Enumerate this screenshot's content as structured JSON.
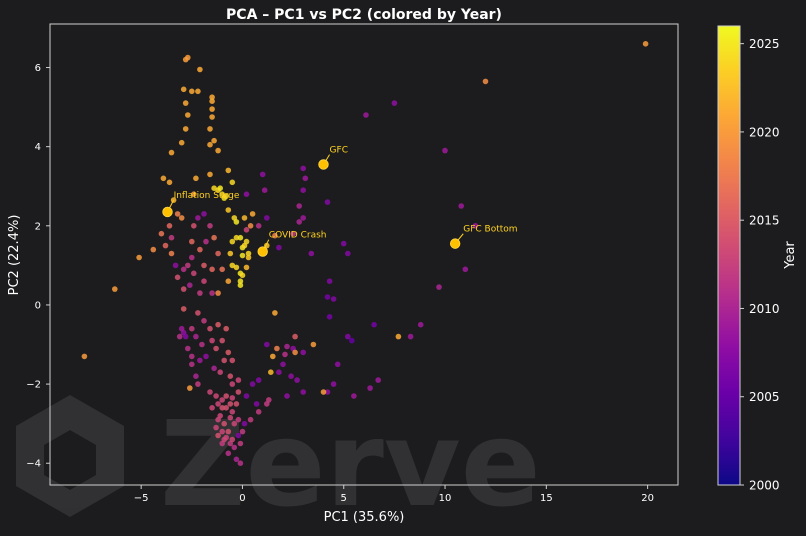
{
  "chart_data": {
    "type": "scatter",
    "title": "PCA – PC1 vs PC2 (colored by Year)",
    "xlabel": "PC1 (35.6%)",
    "ylabel": "PC2 (22.4%)",
    "xlim": [
      -9.5,
      21.5
    ],
    "ylim": [
      -4.55,
      7.1
    ],
    "xticks": [
      -5,
      0,
      5,
      10,
      15,
      20
    ],
    "yticks": [
      -4,
      -2,
      0,
      2,
      4,
      6
    ],
    "grid": false,
    "colorbar": {
      "label": "Year",
      "range": [
        2000,
        2026
      ],
      "ticks": [
        2000,
        2005,
        2010,
        2015,
        2020,
        2025
      ],
      "colormap": "plasma"
    },
    "annotations": [
      {
        "label": "GFC",
        "x": 4.0,
        "y": 3.55,
        "text_x": 4.3,
        "text_y": 3.85
      },
      {
        "label": "Inflation Surge",
        "x": -3.7,
        "y": 2.35,
        "text_x": -3.4,
        "text_y": 2.7
      },
      {
        "label": "COVID Crash",
        "x": 1.0,
        "y": 1.35,
        "text_x": 1.3,
        "text_y": 1.7
      },
      {
        "label": "GFC Bottom",
        "x": 10.5,
        "y": 1.55,
        "text_x": 10.9,
        "text_y": 1.85
      }
    ],
    "points": [
      [
        19.9,
        6.6,
        2020
      ],
      [
        12.0,
        5.65,
        2019
      ],
      [
        7.5,
        5.1,
        2008
      ],
      [
        6.1,
        4.8,
        2009
      ],
      [
        10.0,
        3.9,
        2009
      ],
      [
        10.8,
        2.5,
        2009
      ],
      [
        11.5,
        2.0,
        2009
      ],
      [
        11.0,
        0.9,
        2009
      ],
      [
        9.7,
        0.45,
        2010
      ],
      [
        8.8,
        -0.5,
        2009
      ],
      [
        8.3,
        -0.8,
        2009
      ],
      [
        7.7,
        -0.8,
        2021
      ],
      [
        6.7,
        -1.9,
        2009
      ],
      [
        6.3,
        -2.1,
        2009
      ],
      [
        5.5,
        -2.3,
        2009
      ],
      [
        4.7,
        -1.5,
        2008
      ],
      [
        4.5,
        -2.0,
        2008
      ],
      [
        4.2,
        -2.2,
        2008
      ],
      [
        4.0,
        -2.2,
        2020
      ],
      [
        3.5,
        -1.0,
        2020
      ],
      [
        3.0,
        -2.2,
        2008
      ],
      [
        3.0,
        -1.2,
        2008
      ],
      [
        2.7,
        -1.9,
        2008
      ],
      [
        2.4,
        -1.8,
        2008
      ],
      [
        2.2,
        -2.3,
        2008
      ],
      [
        2.0,
        -1.5,
        2008
      ],
      [
        2.5,
        -1.1,
        2008
      ],
      [
        2.6,
        -1.2,
        2019
      ],
      [
        1.8,
        -1.7,
        2008
      ],
      [
        1.7,
        -1.1,
        2018
      ],
      [
        1.5,
        -1.3,
        2021
      ],
      [
        1.4,
        -1.7,
        2022
      ],
      [
        1.2,
        -1.0,
        2007
      ],
      [
        0.8,
        -1.9,
        2007
      ],
      [
        0.5,
        -2.0,
        2007
      ],
      [
        0.2,
        -2.3,
        2007
      ],
      [
        0.7,
        -2.5,
        2007
      ],
      [
        0.1,
        -3.0,
        2007
      ],
      [
        -0.2,
        -3.3,
        2007
      ],
      [
        1.3,
        -2.4,
        2012
      ],
      [
        1.2,
        -2.5,
        2012
      ],
      [
        0.8,
        -2.7,
        2012
      ],
      [
        0.4,
        -2.9,
        2012
      ],
      [
        0.0,
        -3.2,
        2012
      ],
      [
        -1.2,
        -2.5,
        2013
      ],
      [
        -1.0,
        -2.6,
        2014
      ],
      [
        -1.1,
        -2.8,
        2013
      ],
      [
        -0.9,
        -3.0,
        2014
      ],
      [
        -1.3,
        -3.1,
        2013
      ],
      [
        -0.7,
        -3.2,
        2014
      ],
      [
        -0.8,
        -3.35,
        2013
      ],
      [
        -1.0,
        -3.5,
        2012
      ],
      [
        -0.6,
        -3.5,
        2012
      ],
      [
        -0.4,
        -3.6,
        2011
      ],
      [
        -0.3,
        -3.9,
        2010
      ],
      [
        -0.1,
        -3.5,
        2012
      ],
      [
        -0.4,
        -3.0,
        2013
      ],
      [
        -0.5,
        -2.7,
        2013
      ],
      [
        -0.6,
        -2.5,
        2014
      ],
      [
        -0.3,
        -2.5,
        2014
      ],
      [
        -0.8,
        -2.3,
        2014
      ],
      [
        -1.3,
        -2.3,
        2013
      ],
      [
        -1.5,
        -2.6,
        2013
      ],
      [
        -1.2,
        -3.3,
        2014
      ],
      [
        -0.9,
        -3.4,
        2013
      ],
      [
        -0.5,
        -3.4,
        2013
      ],
      [
        -0.2,
        -2.9,
        2012
      ],
      [
        -0.2,
        -2.2,
        2014
      ],
      [
        -0.1,
        -4.0,
        2011
      ],
      [
        -0.7,
        -3.75,
        2011
      ],
      [
        -1.6,
        -2.2,
        2013
      ],
      [
        -1.0,
        -2.4,
        2013
      ],
      [
        -0.5,
        -2.35,
        2013
      ],
      [
        -1.2,
        -2.9,
        2013
      ],
      [
        -0.6,
        -2.85,
        2013
      ],
      [
        -0.8,
        -2.6,
        2014
      ],
      [
        -1.0,
        -3.2,
        2013
      ],
      [
        -0.5,
        -2.0,
        2013
      ],
      [
        -0.2,
        -1.9,
        2013
      ],
      [
        -0.6,
        -1.8,
        2014
      ],
      [
        -1.1,
        -1.7,
        2013
      ],
      [
        -0.9,
        -1.4,
        2014
      ],
      [
        -0.7,
        -1.2,
        2015
      ],
      [
        -1.3,
        -1.1,
        2014
      ],
      [
        -1.0,
        -0.9,
        2014
      ],
      [
        -1.5,
        -0.9,
        2013
      ],
      [
        -0.8,
        -0.6,
        2015
      ],
      [
        -1.2,
        -0.5,
        2015
      ],
      [
        -1.6,
        -0.6,
        2014
      ],
      [
        -0.5,
        -1.4,
        2014
      ],
      [
        -1.8,
        -1.3,
        2008
      ],
      [
        -2.0,
        -1.0,
        2011
      ],
      [
        -2.3,
        -0.8,
        2010
      ],
      [
        -1.9,
        -0.4,
        2012
      ],
      [
        -2.2,
        -0.2,
        2014
      ],
      [
        -2.9,
        -0.1,
        2015
      ],
      [
        -2.9,
        0.4,
        2014
      ],
      [
        -2.5,
        -0.6,
        2012
      ],
      [
        -2.5,
        -1.3,
        2011
      ],
      [
        -2.1,
        -1.4,
        2009
      ],
      [
        -1.4,
        -1.6,
        2010
      ],
      [
        -2.2,
        -2.0,
        2012
      ],
      [
        -2.7,
        -1.1,
        2011
      ],
      [
        -2.9,
        -0.7,
        2008
      ],
      [
        -3.0,
        -0.6,
        2009
      ],
      [
        -2.8,
        -0.8,
        2007
      ],
      [
        -2.6,
        -2.1,
        2020
      ],
      [
        -2.5,
        -1.5,
        2011
      ],
      [
        -2.3,
        -1.8,
        2010
      ],
      [
        -3.1,
        -0.8,
        2011
      ],
      [
        -3.2,
        0.7,
        2014
      ],
      [
        -3.3,
        1.0,
        2008
      ],
      [
        -2.9,
        0.9,
        2011
      ],
      [
        -2.7,
        1.0,
        2012
      ],
      [
        -2.5,
        1.2,
        2011
      ],
      [
        -2.4,
        0.8,
        2013
      ],
      [
        -2.6,
        0.5,
        2010
      ],
      [
        -2.1,
        0.3,
        2012
      ],
      [
        -1.9,
        0.6,
        2013
      ],
      [
        -1.5,
        0.9,
        2016
      ],
      [
        -1.2,
        1.3,
        2016
      ],
      [
        -1.0,
        0.9,
        2017
      ],
      [
        -1.2,
        0.3,
        2019
      ],
      [
        -1.5,
        0.3,
        2011
      ],
      [
        -1.4,
        1.7,
        2017
      ],
      [
        -1.8,
        1.6,
        2011
      ],
      [
        -1.6,
        2.0,
        2012
      ],
      [
        -2.2,
        2.2,
        2009
      ],
      [
        -1.9,
        2.3,
        2008
      ],
      [
        -2.1,
        1.4,
        2016
      ],
      [
        -1.9,
        1.0,
        2015
      ],
      [
        -3.5,
        1.7,
        2012
      ],
      [
        -3.8,
        1.5,
        2016
      ],
      [
        -4.0,
        1.8,
        2017
      ],
      [
        -3.6,
        2.0,
        2016
      ],
      [
        -3.0,
        2.2,
        2019
      ],
      [
        -3.2,
        2.3,
        2018
      ],
      [
        -3.4,
        2.65,
        2022
      ],
      [
        -2.5,
        1.6,
        2016
      ],
      [
        -2.4,
        2.0,
        2014
      ],
      [
        -4.4,
        1.4,
        2019
      ],
      [
        -5.1,
        1.2,
        2020
      ],
      [
        -6.3,
        0.4,
        2020
      ],
      [
        -7.8,
        -1.3,
        2020
      ],
      [
        -3.5,
        1.3,
        2018
      ],
      [
        -3.9,
        3.2,
        2021
      ],
      [
        -3.6,
        3.1,
        2021
      ],
      [
        -3.5,
        3.85,
        2021
      ],
      [
        -3.0,
        4.1,
        2021
      ],
      [
        -2.8,
        4.45,
        2021
      ],
      [
        -2.7,
        4.8,
        2021
      ],
      [
        -2.8,
        5.1,
        2021
      ],
      [
        -2.9,
        5.45,
        2021
      ],
      [
        -2.5,
        5.4,
        2021
      ],
      [
        -2.2,
        5.4,
        2021
      ],
      [
        -2.1,
        5.95,
        2021
      ],
      [
        -2.8,
        6.2,
        2020
      ],
      [
        -2.7,
        6.25,
        2020
      ],
      [
        -1.5,
        5.25,
        2021
      ],
      [
        -1.5,
        5.15,
        2021
      ],
      [
        -1.5,
        4.95,
        2021
      ],
      [
        -1.5,
        4.75,
        2021
      ],
      [
        -1.6,
        4.45,
        2021
      ],
      [
        -1.6,
        4.05,
        2021
      ],
      [
        -1.4,
        4.15,
        2021
      ],
      [
        -1.2,
        3.9,
        2021
      ],
      [
        -0.5,
        3.1,
        2024
      ],
      [
        -0.7,
        3.4,
        2022
      ],
      [
        -1.6,
        3.3,
        2021
      ],
      [
        -2.3,
        3.2,
        2021
      ],
      [
        -2.4,
        2.8,
        2020
      ],
      [
        -1.4,
        2.95,
        2024
      ],
      [
        -1.2,
        2.9,
        2024
      ],
      [
        -1.1,
        2.95,
        2025
      ],
      [
        -1.0,
        2.8,
        2024
      ],
      [
        -0.9,
        2.7,
        2025
      ],
      [
        -0.8,
        2.75,
        2024
      ],
      [
        -0.7,
        2.4,
        2023
      ],
      [
        -0.4,
        2.2,
        2024
      ],
      [
        -0.3,
        2.1,
        2025
      ],
      [
        -0.3,
        1.7,
        2024
      ],
      [
        -0.5,
        1.6,
        2024
      ],
      [
        -0.6,
        1.3,
        2023
      ],
      [
        -0.5,
        1.0,
        2024
      ],
      [
        -0.3,
        0.95,
        2024
      ],
      [
        -0.1,
        0.8,
        2025
      ],
      [
        -0.1,
        0.6,
        2025
      ],
      [
        -0.1,
        0.5,
        2025
      ],
      [
        0.0,
        1.45,
        2025
      ],
      [
        0.0,
        1.25,
        2025
      ],
      [
        0.1,
        1.5,
        2024
      ],
      [
        0.2,
        1.6,
        2024
      ],
      [
        0.3,
        1.3,
        2024
      ],
      [
        0.3,
        1.2,
        2023
      ],
      [
        0.2,
        0.95,
        2022
      ],
      [
        0.0,
        0.75,
        2024
      ],
      [
        -0.7,
        0.6,
        2021
      ],
      [
        0.5,
        2.3,
        2021
      ],
      [
        0.4,
        2.0,
        2019
      ],
      [
        0.2,
        1.9,
        2013
      ],
      [
        -0.1,
        1.7,
        2025
      ],
      [
        1.2,
        1.5,
        2023
      ],
      [
        1.6,
        1.75,
        2018
      ],
      [
        1.6,
        -0.2,
        2021
      ],
      [
        2.6,
        -0.8,
        2015
      ],
      [
        2.2,
        -1.05,
        2010
      ],
      [
        2.1,
        -1.25,
        2011
      ],
      [
        2.5,
        1.8,
        2012
      ],
      [
        2.8,
        2.1,
        2010
      ],
      [
        2.8,
        2.5,
        2010
      ],
      [
        3.0,
        2.2,
        2009
      ],
      [
        3.0,
        2.9,
        2008
      ],
      [
        3.1,
        3.2,
        2009
      ],
      [
        3.0,
        3.45,
        2008
      ],
      [
        4.2,
        2.6,
        2007
      ],
      [
        5.0,
        1.55,
        2007
      ],
      [
        5.2,
        1.3,
        2007
      ],
      [
        4.3,
        0.6,
        2007
      ],
      [
        4.5,
        0.15,
        2007
      ],
      [
        4.2,
        0.2,
        2006
      ],
      [
        4.3,
        -0.3,
        2006
      ],
      [
        5.2,
        -0.8,
        2007
      ],
      [
        6.5,
        -0.5,
        2006
      ],
      [
        5.4,
        -0.9,
        2005
      ],
      [
        1.0,
        3.3,
        2008
      ],
      [
        0.2,
        2.8,
        2008
      ],
      [
        1.1,
        2.9,
        2009
      ],
      [
        1.2,
        2.2,
        2007
      ],
      [
        1.8,
        1.45,
        2007
      ],
      [
        3.4,
        1.3,
        2008
      ],
      [
        0.8,
        2.0,
        2011
      ],
      [
        0.1,
        2.2,
        2022
      ]
    ]
  }
}
